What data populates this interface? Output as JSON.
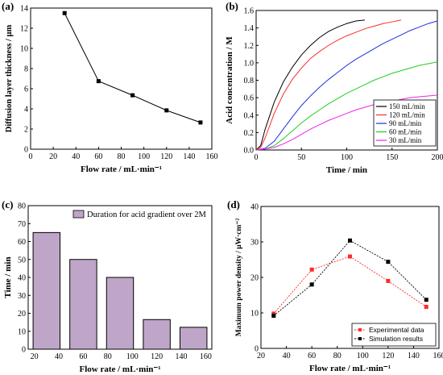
{
  "chart_data": [
    {
      "panel": "(a)",
      "type": "line",
      "ylabel": "Diffusion layer thickness / μm",
      "xlabel": "Flow rate / mL·min⁻¹",
      "x": [
        30,
        60,
        90,
        120,
        150
      ],
      "y": [
        13.5,
        6.75,
        5.35,
        3.85,
        2.65
      ],
      "xlim": [
        0,
        160
      ],
      "ylim": [
        0,
        14
      ],
      "xticks": [
        "0",
        "20",
        "40",
        "60",
        "80",
        "100",
        "120",
        "140",
        "160"
      ],
      "yticks": [
        "0",
        "2",
        "4",
        "6",
        "8",
        "10",
        "12",
        "14"
      ],
      "color": "#000000",
      "marker": "square"
    },
    {
      "panel": "(b)",
      "type": "line",
      "ylabel": "Acid concentration / M",
      "xlabel": "Time / min",
      "xlim": [
        0,
        200
      ],
      "ylim": [
        0,
        1.6
      ],
      "xticks": [
        "0",
        "50",
        "100",
        "150",
        "200"
      ],
      "yticks": [
        "0.0",
        "0.2",
        "0.4",
        "0.6",
        "0.8",
        "1.0",
        "1.2",
        "1.4",
        "1.6"
      ],
      "legend_position": "bottom-right",
      "series": [
        {
          "name": "150 mL/min",
          "color": "#000000",
          "x": [
            0,
            5,
            10,
            20,
            30,
            40,
            50,
            60,
            70,
            80,
            90,
            100,
            110,
            120
          ],
          "y": [
            0,
            0.05,
            0.24,
            0.55,
            0.78,
            0.95,
            1.09,
            1.2,
            1.29,
            1.36,
            1.41,
            1.45,
            1.48,
            1.49
          ]
        },
        {
          "name": "120 mL/min",
          "color": "#ff2a2a",
          "x": [
            0,
            5,
            10,
            20,
            30,
            40,
            50,
            60,
            70,
            80,
            90,
            100,
            110,
            120,
            130,
            140,
            150,
            160
          ],
          "y": [
            0,
            0.03,
            0.14,
            0.42,
            0.64,
            0.81,
            0.94,
            1.05,
            1.13,
            1.2,
            1.26,
            1.31,
            1.35,
            1.39,
            1.42,
            1.45,
            1.47,
            1.49
          ]
        },
        {
          "name": "90 mL/min",
          "color": "#1f2ee0",
          "x": [
            0,
            10,
            20,
            30,
            40,
            50,
            60,
            70,
            80,
            90,
            100,
            110,
            120,
            130,
            140,
            150,
            160,
            170,
            180,
            190,
            200
          ],
          "y": [
            0,
            0.02,
            0.1,
            0.24,
            0.38,
            0.51,
            0.62,
            0.72,
            0.81,
            0.89,
            0.97,
            1.04,
            1.1,
            1.16,
            1.22,
            1.27,
            1.32,
            1.37,
            1.41,
            1.45,
            1.48
          ]
        },
        {
          "name": "60 mL/min",
          "color": "#22cc22",
          "x": [
            0,
            10,
            20,
            30,
            40,
            50,
            60,
            70,
            80,
            90,
            100,
            110,
            120,
            130,
            140,
            150,
            160,
            170,
            180,
            190,
            200
          ],
          "y": [
            0,
            0.01,
            0.05,
            0.13,
            0.22,
            0.31,
            0.39,
            0.46,
            0.53,
            0.59,
            0.65,
            0.7,
            0.75,
            0.8,
            0.84,
            0.88,
            0.91,
            0.94,
            0.97,
            0.99,
            1.01
          ]
        },
        {
          "name": "30 mL/min",
          "color": "#ee22ee",
          "x": [
            0,
            10,
            20,
            30,
            40,
            50,
            60,
            70,
            80,
            90,
            100,
            110,
            120,
            130,
            140,
            150,
            160,
            170,
            180,
            190,
            200
          ],
          "y": [
            0,
            0.01,
            0.03,
            0.07,
            0.12,
            0.18,
            0.24,
            0.29,
            0.34,
            0.38,
            0.42,
            0.46,
            0.49,
            0.52,
            0.54,
            0.56,
            0.58,
            0.6,
            0.61,
            0.62,
            0.63
          ]
        }
      ]
    },
    {
      "panel": "(c)",
      "type": "bar",
      "ylabel": "Time / min",
      "xlabel": "Flow rate / mL·min⁻¹",
      "x": [
        30,
        60,
        90,
        120,
        150
      ],
      "values": [
        65,
        50,
        40,
        16.5,
        12.2
      ],
      "xlim": [
        15,
        165
      ],
      "ylim": [
        0,
        80
      ],
      "xticks": [
        "20",
        "40",
        "60",
        "80",
        "100",
        "120",
        "140",
        "160"
      ],
      "yticks": [
        "0",
        "10",
        "20",
        "30",
        "40",
        "50",
        "60",
        "70",
        "80"
      ],
      "bar_color": "#bfa6c9",
      "legend": "Duration for acid gradient over 2M",
      "legend_position": "top"
    },
    {
      "panel": "(d)",
      "type": "line",
      "ylabel": "Maximum power density / μW·cm⁻²",
      "xlabel": "Flow rate / mL·min⁻¹",
      "xlim": [
        20,
        160
      ],
      "ylim": [
        0,
        40
      ],
      "xticks": [
        "20",
        "40",
        "60",
        "80",
        "100",
        "120",
        "140",
        "160"
      ],
      "yticks": [
        "0",
        "10",
        "20",
        "30",
        "40"
      ],
      "legend_position": "bottom-right",
      "series": [
        {
          "name": "Experimental data",
          "color": "#ff2a2a",
          "x": [
            30,
            60,
            90,
            120,
            150
          ],
          "y": [
            9.8,
            22.2,
            25.9,
            19.0,
            11.7
          ]
        },
        {
          "name": "Simulation results",
          "color": "#000000",
          "x": [
            30,
            60,
            90,
            120,
            150
          ],
          "y": [
            9.2,
            18.0,
            30.4,
            24.4,
            13.7
          ]
        }
      ]
    }
  ]
}
